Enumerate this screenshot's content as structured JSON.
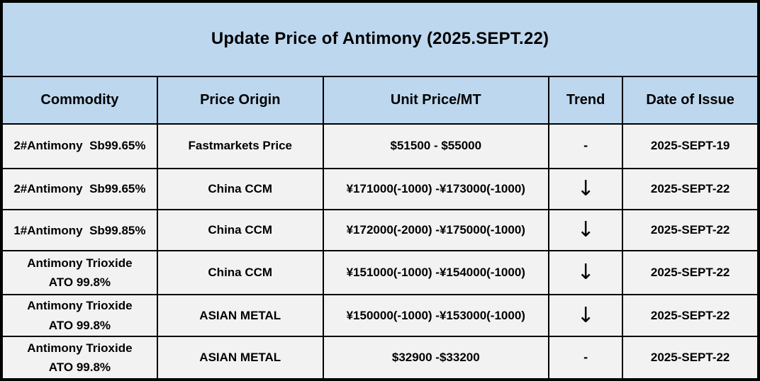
{
  "title": "Update Price of Antimony (2025.SEPT.22)",
  "table": {
    "columns": [
      "Commodity",
      "Price Origin",
      "Unit Price/MT",
      "Trend",
      "Date of Issue"
    ],
    "rows": [
      {
        "commodity": "2#Antimony  Sb99.65%",
        "origin": "Fastmarkets Price",
        "price": "$51500 - $55000",
        "trend": "-",
        "date": "2025-SEPT-19"
      },
      {
        "commodity": "2#Antimony  Sb99.65%",
        "origin": "China CCM",
        "price": "¥171000(-1000) -¥173000(-1000)",
        "trend": "↓",
        "date": "2025-SEPT-22"
      },
      {
        "commodity": "1#Antimony  Sb99.85%",
        "origin": "China CCM",
        "price": "¥172000(-2000) -¥175000(-1000)",
        "trend": "↓",
        "date": "2025-SEPT-22"
      },
      {
        "commodity": "Antimony Trioxide\nATO 99.8%",
        "origin": "China CCM",
        "price": "¥151000(-1000) -¥154000(-1000)",
        "trend": "↓",
        "date": "2025-SEPT-22"
      },
      {
        "commodity": "Antimony Trioxide\nATO 99.8%",
        "origin": "ASIAN METAL",
        "price": "¥150000(-1000) -¥153000(-1000)",
        "trend": "↓",
        "date": "2025-SEPT-22"
      },
      {
        "commodity": "Antimony Trioxide\nATO 99.8%",
        "origin": "ASIAN METAL",
        "price": "$32900 -$33200",
        "trend": "-",
        "date": "2025-SEPT-22"
      }
    ]
  },
  "colors": {
    "title_header_bg": "#BDD7EE",
    "data_row_bg": "#F2F2F2",
    "border": "#000000",
    "text": "#000000"
  }
}
